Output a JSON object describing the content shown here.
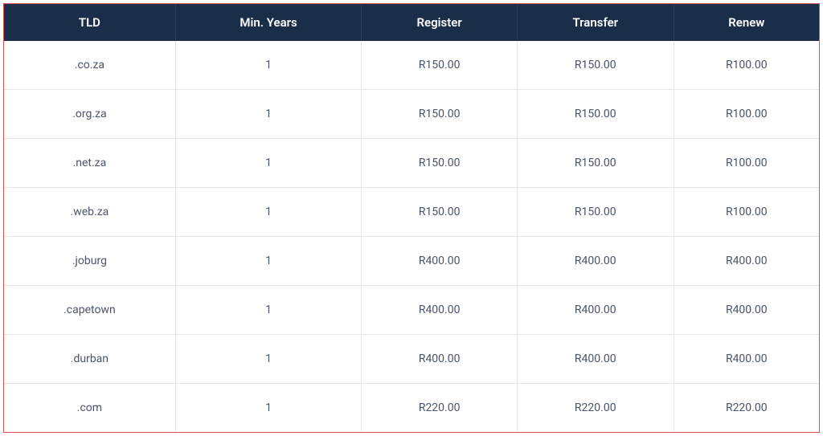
{
  "table": {
    "columns": [
      "TLD",
      "Min. Years",
      "Register",
      "Transfer",
      "Renew"
    ],
    "rows": [
      {
        "tld": ".co.za",
        "min_years": "1",
        "register": "R150.00",
        "transfer": "R150.00",
        "renew": "R100.00"
      },
      {
        "tld": ".org.za",
        "min_years": "1",
        "register": "R150.00",
        "transfer": "R150.00",
        "renew": "R100.00"
      },
      {
        "tld": ".net.za",
        "min_years": "1",
        "register": "R150.00",
        "transfer": "R150.00",
        "renew": "R100.00"
      },
      {
        "tld": ".web.za",
        "min_years": "1",
        "register": "R150.00",
        "transfer": "R150.00",
        "renew": "R100.00"
      },
      {
        "tld": ".joburg",
        "min_years": "1",
        "register": "R400.00",
        "transfer": "R400.00",
        "renew": "R400.00"
      },
      {
        "tld": ".capetown",
        "min_years": "1",
        "register": "R400.00",
        "transfer": "R400.00",
        "renew": "R400.00"
      },
      {
        "tld": ".durban",
        "min_years": "1",
        "register": "R400.00",
        "transfer": "R400.00",
        "renew": "R400.00"
      },
      {
        "tld": ".com",
        "min_years": "1",
        "register": "R220.00",
        "transfer": "R220.00",
        "renew": "R220.00"
      }
    ],
    "header_bg": "#1a2e4a",
    "header_color": "#ffffff",
    "border_color": "#d9534f",
    "row_border_color": "#e5e7eb",
    "cell_text_color": "#4a5568"
  }
}
